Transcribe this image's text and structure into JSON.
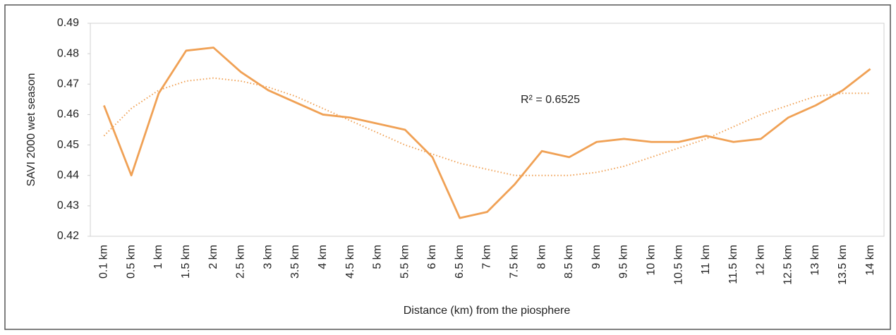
{
  "chart_data": {
    "type": "line",
    "x_label": "Distance (km) from the piosphere",
    "y_label": "SAVI 2000 wet season",
    "categories": [
      "0.1 km",
      "0.5 km",
      "1 km",
      "1.5 km",
      "2 km",
      "2.5 km",
      "3 km",
      "3.5 km",
      "4 km",
      "4.5 km",
      "5 km",
      "5.5 km",
      "6 km",
      "6.5 km",
      "7 km",
      "7.5 km",
      "8 km",
      "8.5 km",
      "9 km",
      "9.5 km",
      "10 km",
      "10.5 km",
      "11 km",
      "11.5 km",
      "12 km",
      "12.5 km",
      "13 km",
      "13.5 km",
      "14 km"
    ],
    "values": [
      0.463,
      0.44,
      0.467,
      0.481,
      0.482,
      0.474,
      0.468,
      0.464,
      0.46,
      0.459,
      0.457,
      0.455,
      0.446,
      0.426,
      0.428,
      0.437,
      0.448,
      0.446,
      0.451,
      0.452,
      0.451,
      0.451,
      0.453,
      0.451,
      0.452,
      0.459,
      0.463,
      0.468,
      0.475
    ],
    "color": "#f0a155",
    "trendline": {
      "values": [
        0.453,
        0.462,
        0.468,
        0.471,
        0.472,
        0.471,
        0.469,
        0.466,
        0.462,
        0.458,
        0.454,
        0.45,
        0.447,
        0.444,
        0.442,
        0.44,
        0.44,
        0.44,
        0.441,
        0.443,
        0.446,
        0.449,
        0.452,
        0.456,
        0.46,
        0.463,
        0.466,
        0.467,
        0.467
      ],
      "label": "R² = 0.6525"
    },
    "ylim": [
      0.42,
      0.49
    ],
    "yticks": [
      0.42,
      0.43,
      0.44,
      0.45,
      0.46,
      0.47,
      0.48,
      0.49
    ],
    "grid": false
  }
}
